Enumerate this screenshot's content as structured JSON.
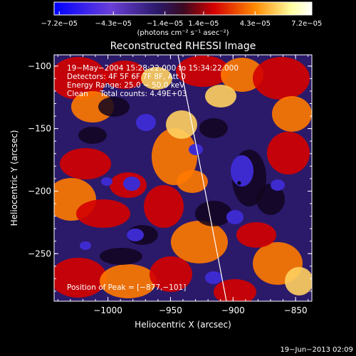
{
  "colorbar": {
    "tick_labels": [
      "−7.2e−05",
      "−4.3e−05",
      "−1.4e−05",
      "1.4e−05",
      "4.3e−05",
      "7.2e−05"
    ],
    "units": "(photons cm⁻² s⁻¹ asec⁻²)",
    "colors": [
      "#0000ff",
      "#6a3fd8",
      "#2b1a6a",
      "#5a0d1a",
      "#d40000",
      "#ff8a00",
      "#ffffa0",
      "#ffffff"
    ]
  },
  "plot": {
    "title": "Reconstructed RHESSI Image",
    "info_lines": [
      "19−May−2004 15:28:22.000 to 15:34:22.000",
      "Detectors: 4F 5F 6F 7F 8F, Att 0",
      "Energy Range: 25.0 − 50.0 keV",
      "Clean     Total counts: 4.49E+03"
    ],
    "peak_text": "Position of Peak = [−877,−101]",
    "xlabel": "Heliocentric X (arcsec)",
    "ylabel": "Heliocentric Y (arcsec)",
    "x_ticks": [
      {
        "label": "−1000",
        "value": -1000
      },
      {
        "label": "−950",
        "value": -950
      },
      {
        "label": "−900",
        "value": -900
      },
      {
        "label": "−850",
        "value": -850
      }
    ],
    "y_ticks": [
      {
        "label": "−100",
        "value": -100
      },
      {
        "label": "−150",
        "value": -150
      },
      {
        "label": "−200",
        "value": -200
      },
      {
        "label": "−250",
        "value": -250
      }
    ],
    "xlim": [
      -1043,
      -837
    ],
    "ylim": [
      -288,
      -91
    ],
    "limb_color": "#ffffff"
  },
  "footer": {
    "date": "19−Jun−2013 02:09"
  }
}
